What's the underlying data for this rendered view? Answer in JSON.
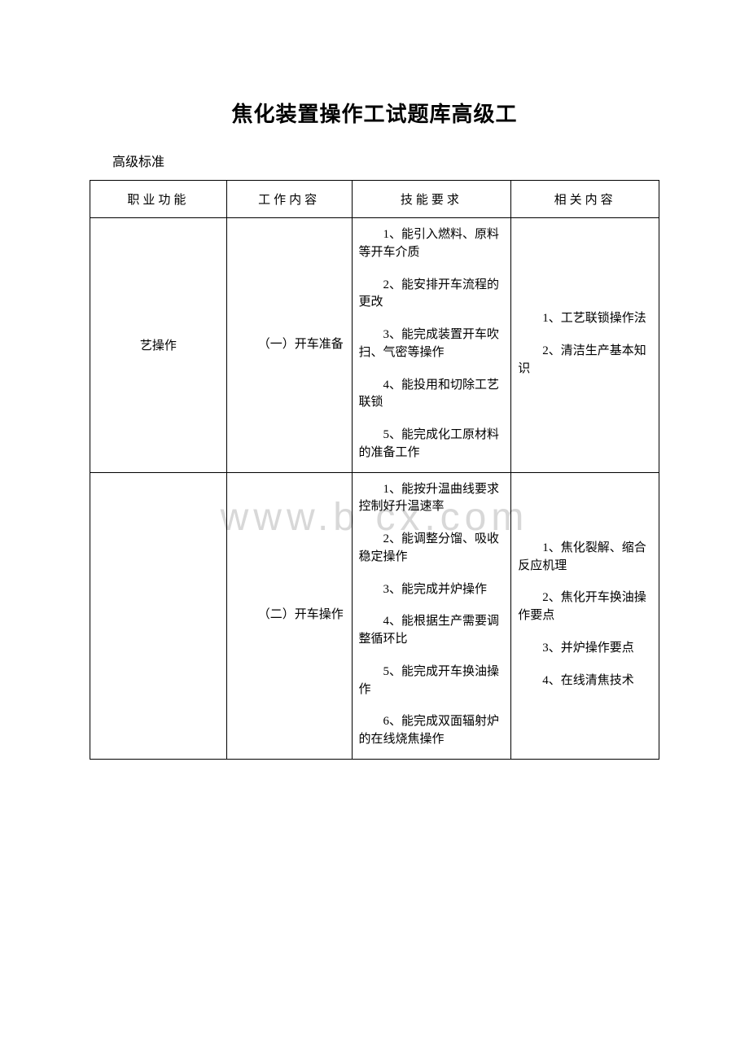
{
  "document": {
    "title": "焦化装置操作工试题库高级工",
    "subtitle": "高级标准",
    "watermark_text": "www.b  cx.com",
    "background_color": "#ffffff",
    "text_color": "#000000",
    "watermark_color": "#d8d8d8",
    "border_color": "#000000",
    "title_fontsize": 26,
    "body_fontsize": 15
  },
  "table": {
    "headers": {
      "col1": "职业功能",
      "col2": "工作内容",
      "col3": "技能要求",
      "col4": "相关内容"
    },
    "rows": [
      {
        "function": "艺操作",
        "work": "（一）开车准备",
        "skills": [
          "1、能引入燃料、原料等开车介质",
          "2、能安排开车流程的更改",
          "3、能完成装置开车吹扫、气密等操作",
          "4、能投用和切除工艺联锁",
          "5、能完成化工原材料的准备工作"
        ],
        "related": [
          "1、工艺联锁操作法",
          "2、清洁生产基本知识"
        ]
      },
      {
        "function": "",
        "work": "（二）开车操作",
        "skills": [
          "1、能按升温曲线要求控制好升温速率",
          "2、能调整分馏、吸收稳定操作",
          "3、能完成并炉操作",
          "4、能根据生产需要调整循环比",
          "5、能完成开车换油操作",
          "6、能完成双面辐射炉的在线烧焦操作"
        ],
        "related": [
          "1、焦化裂解、缩合反应机理",
          "2、焦化开车换油操作要点",
          "3、并炉操作要点",
          "4、在线清焦技术"
        ]
      }
    ]
  }
}
